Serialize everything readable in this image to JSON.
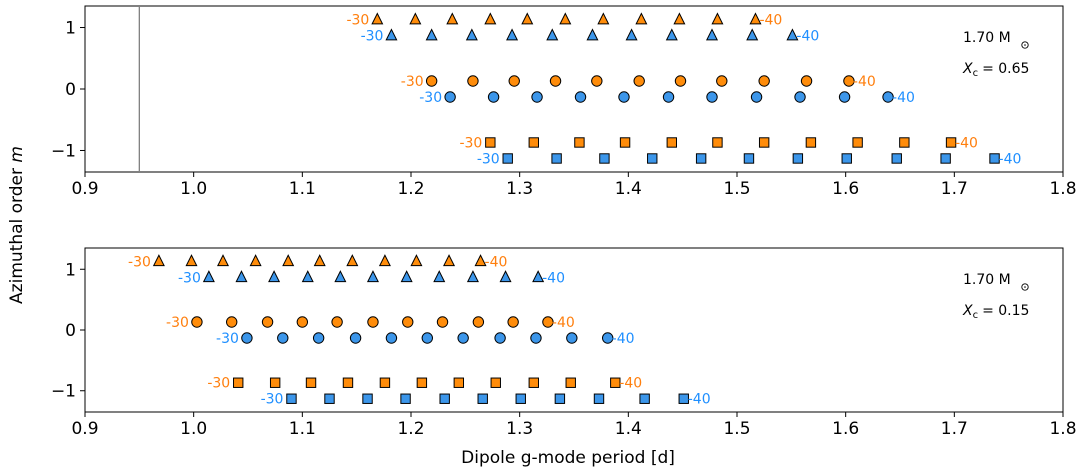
{
  "figure": {
    "xlabel": "Dipole g-mode period [d]",
    "ylabel_main": "Azimuthal order ",
    "ylabel_italic": "m"
  },
  "colors": {
    "orange": "#ff8c0a",
    "orange_label": "#ff7f0e",
    "blue": "#3c96ea",
    "blue_label": "#1f8fff",
    "edge": "#000000",
    "vline": "#808080"
  },
  "chart_data": [
    {
      "type": "scatter",
      "xlim": [
        0.9,
        1.8
      ],
      "ylim": [
        -1.35,
        1.35
      ],
      "xticks": [
        "0.9",
        "1.0",
        "1.1",
        "1.2",
        "1.3",
        "1.4",
        "1.5",
        "1.6",
        "1.7",
        "1.8"
      ],
      "yticks": [
        "1",
        "0",
        "−1"
      ],
      "ytick_values": [
        1,
        0,
        -1
      ],
      "vline_x": 0.95,
      "annotation": {
        "mass_num": "1.70",
        "mass_unit": "M",
        "xc_label": "X",
        "xc_sub": "c",
        "xc_value": "= 0.65"
      },
      "series": [
        {
          "group": "orange",
          "m": 1,
          "marker": "triangle",
          "x": [
            1.169,
            1.204,
            1.238,
            1.273,
            1.307,
            1.342,
            1.377,
            1.412,
            1.447,
            1.482,
            1.517
          ],
          "start_label": "-30",
          "end_label": "-40"
        },
        {
          "group": "blue",
          "m": 1,
          "marker": "triangle",
          "x": [
            1.182,
            1.219,
            1.256,
            1.293,
            1.33,
            1.367,
            1.403,
            1.44,
            1.477,
            1.514,
            1.551
          ],
          "start_label": "-30",
          "end_label": "-40"
        },
        {
          "group": "orange",
          "m": 0,
          "marker": "circle",
          "x": [
            1.219,
            1.257,
            1.295,
            1.333,
            1.371,
            1.41,
            1.448,
            1.486,
            1.525,
            1.564,
            1.603
          ],
          "start_label": "-30",
          "end_label": "-40"
        },
        {
          "group": "blue",
          "m": 0,
          "marker": "circle",
          "x": [
            1.236,
            1.276,
            1.316,
            1.356,
            1.396,
            1.437,
            1.477,
            1.518,
            1.558,
            1.599,
            1.639
          ],
          "start_label": "-30",
          "end_label": "-40"
        },
        {
          "group": "orange",
          "m": -1,
          "marker": "square",
          "x": [
            1.273,
            1.313,
            1.355,
            1.397,
            1.44,
            1.482,
            1.525,
            1.568,
            1.611,
            1.654,
            1.697
          ],
          "start_label": "-30",
          "end_label": "-40"
        },
        {
          "group": "blue",
          "m": -1,
          "marker": "square",
          "x": [
            1.289,
            1.334,
            1.378,
            1.422,
            1.467,
            1.511,
            1.556,
            1.601,
            1.647,
            1.692,
            1.737
          ],
          "start_label": "-30",
          "end_label": "-40"
        }
      ]
    },
    {
      "type": "scatter",
      "xlim": [
        0.9,
        1.8
      ],
      "ylim": [
        -1.35,
        1.35
      ],
      "xticks": [
        "0.9",
        "1.0",
        "1.1",
        "1.2",
        "1.3",
        "1.4",
        "1.5",
        "1.6",
        "1.7",
        "1.8"
      ],
      "yticks": [
        "1",
        "0",
        "−1"
      ],
      "ytick_values": [
        1,
        0,
        -1
      ],
      "annotation": {
        "mass_num": "1.70",
        "mass_unit": "M",
        "xc_label": "X",
        "xc_sub": "c",
        "xc_value": "= 0.15"
      },
      "series": [
        {
          "group": "orange",
          "m": 1,
          "marker": "triangle",
          "x": [
            0.968,
            0.998,
            1.027,
            1.057,
            1.087,
            1.116,
            1.146,
            1.176,
            1.205,
            1.235,
            1.264
          ],
          "start_label": "-30",
          "end_label": "-40"
        },
        {
          "group": "blue",
          "m": 1,
          "marker": "triangle",
          "x": [
            1.014,
            1.044,
            1.074,
            1.105,
            1.135,
            1.165,
            1.196,
            1.226,
            1.257,
            1.287,
            1.317
          ],
          "start_label": "-30",
          "end_label": "-40"
        },
        {
          "group": "orange",
          "m": 0,
          "marker": "circle",
          "x": [
            1.003,
            1.035,
            1.068,
            1.1,
            1.132,
            1.165,
            1.197,
            1.229,
            1.262,
            1.294,
            1.326
          ],
          "start_label": "-30",
          "end_label": "-40"
        },
        {
          "group": "blue",
          "m": 0,
          "marker": "circle",
          "x": [
            1.049,
            1.082,
            1.115,
            1.149,
            1.182,
            1.215,
            1.248,
            1.282,
            1.315,
            1.348,
            1.381
          ],
          "start_label": "-30",
          "end_label": "-40"
        },
        {
          "group": "orange",
          "m": -1,
          "marker": "square",
          "x": [
            1.041,
            1.075,
            1.108,
            1.142,
            1.176,
            1.21,
            1.244,
            1.278,
            1.313,
            1.347,
            1.388
          ],
          "start_label": "-30",
          "end_label": "-40"
        },
        {
          "group": "blue",
          "m": -1,
          "marker": "square",
          "x": [
            1.09,
            1.125,
            1.16,
            1.195,
            1.231,
            1.266,
            1.301,
            1.337,
            1.373,
            1.415,
            1.451
          ],
          "start_label": "-30",
          "end_label": "-40"
        }
      ]
    }
  ]
}
